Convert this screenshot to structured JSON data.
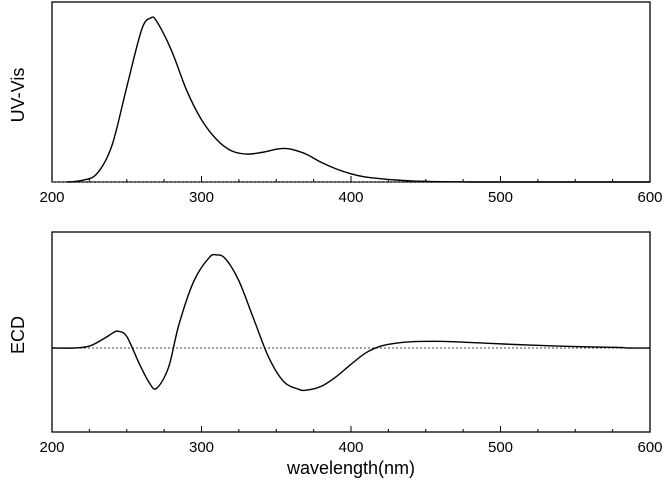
{
  "chart_data": [
    {
      "type": "line",
      "panel": "top",
      "ylabel": "UV-Vis",
      "xlabel": "",
      "xlim": [
        200,
        600
      ],
      "xticks": [
        200,
        300,
        400,
        500,
        600
      ],
      "xtick_labels": [
        "200",
        "300",
        "400",
        "500",
        "600"
      ],
      "y_ticks_shown": false,
      "baseline": {
        "y": 0,
        "style": "dotted"
      },
      "ylim": [
        0,
        1.0
      ],
      "series": [
        {
          "x": [
            210,
            220,
            230,
            240,
            250,
            260,
            266,
            270,
            280,
            290,
            300,
            310,
            320,
            330,
            340,
            350,
            355,
            360,
            370,
            380,
            390,
            400,
            410,
            420,
            430,
            440,
            450,
            460,
            470,
            480,
            500,
            550,
            600
          ],
          "y": [
            0.0,
            0.01,
            0.05,
            0.22,
            0.58,
            0.93,
            1.0,
            0.98,
            0.8,
            0.56,
            0.38,
            0.26,
            0.19,
            0.17,
            0.18,
            0.2,
            0.205,
            0.2,
            0.17,
            0.12,
            0.08,
            0.05,
            0.03,
            0.02,
            0.012,
            0.007,
            0.004,
            0.002,
            0.001,
            0.0,
            0.0,
            0.0,
            0.0
          ]
        }
      ]
    },
    {
      "type": "line",
      "panel": "bottom",
      "ylabel": "ECD",
      "xlabel": "wavelength(nm)",
      "xlim": [
        200,
        600
      ],
      "xticks": [
        200,
        300,
        400,
        500,
        600
      ],
      "xtick_labels": [
        "200",
        "300",
        "400",
        "500",
        "600"
      ],
      "y_ticks_shown": false,
      "baseline": {
        "y": 0,
        "style": "dotted"
      },
      "ylim": [
        -0.6,
        1.0
      ],
      "series": [
        {
          "x": [
            200,
            215,
            225,
            235,
            240,
            244,
            250,
            258,
            265,
            270,
            278,
            285,
            295,
            305,
            310,
            316,
            325,
            335,
            345,
            355,
            365,
            370,
            380,
            390,
            400,
            410,
            420,
            430,
            440,
            455,
            470,
            490,
            520,
            550,
            580,
            585,
            600
          ],
          "y": [
            0.0,
            0.0,
            0.02,
            0.1,
            0.15,
            0.175,
            0.12,
            -0.15,
            -0.36,
            -0.42,
            -0.2,
            0.25,
            0.7,
            0.94,
            0.97,
            0.93,
            0.7,
            0.3,
            -0.1,
            -0.35,
            -0.43,
            -0.44,
            -0.4,
            -0.3,
            -0.17,
            -0.05,
            0.02,
            0.05,
            0.065,
            0.07,
            0.065,
            0.05,
            0.03,
            0.015,
            0.005,
            0.0,
            0.0
          ]
        }
      ]
    }
  ]
}
